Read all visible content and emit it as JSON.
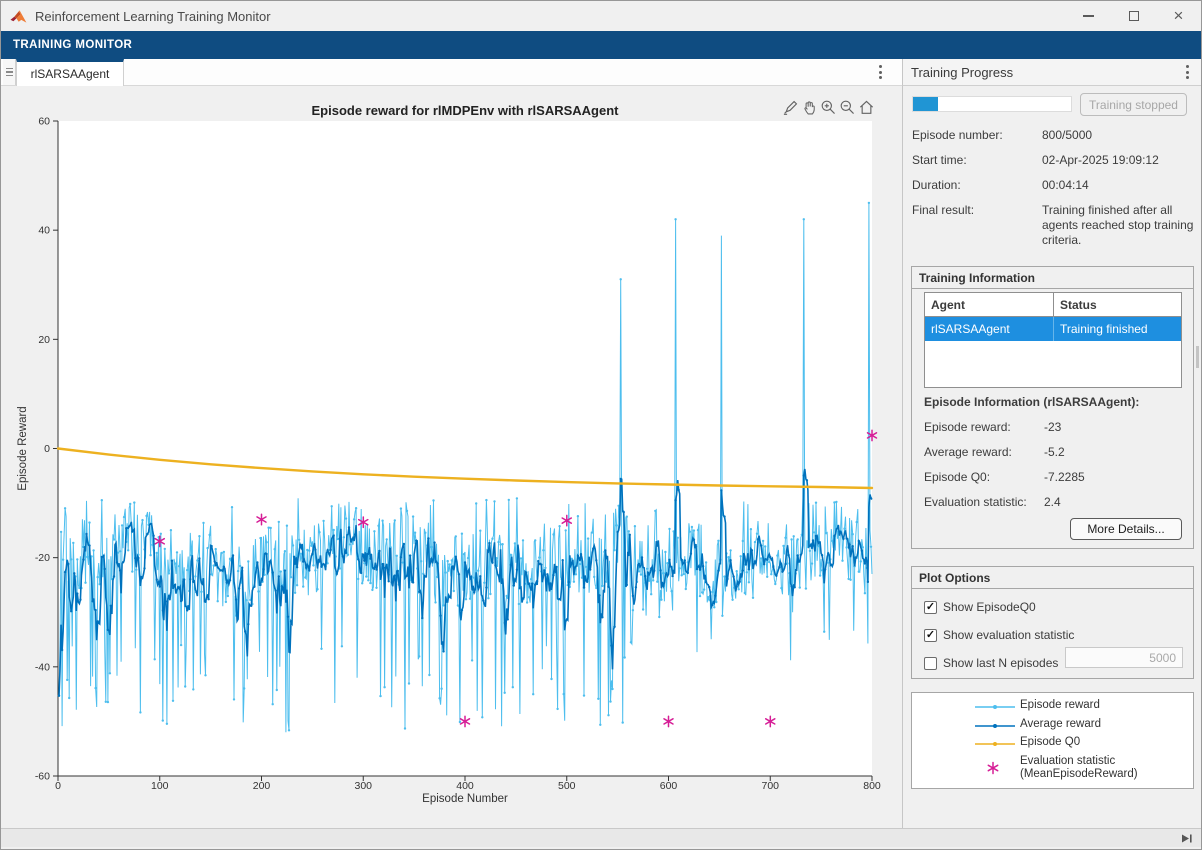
{
  "window": {
    "title": "Reinforcement Learning Training Monitor",
    "controls": [
      "minimize",
      "maximize",
      "close"
    ]
  },
  "toolstrip": {
    "tab_label": "TRAINING MONITOR"
  },
  "document_tabs": {
    "active_tab": "rlSARSAAgent"
  },
  "plot_toolbar": {
    "icons": [
      "edit-plot",
      "pan",
      "zoom-in",
      "zoom-out",
      "home"
    ]
  },
  "chart_data": {
    "type": "line",
    "title": "Episode reward for rlMDPEnv with rlSARSAAgent",
    "xlabel": "Episode Number",
    "ylabel": "Episode Reward",
    "xlim": [
      0,
      800
    ],
    "ylim": [
      -60,
      60
    ],
    "xticks": [
      0,
      100,
      200,
      300,
      400,
      500,
      600,
      700,
      800
    ],
    "yticks": [
      -60,
      -40,
      -20,
      0,
      20,
      40,
      60
    ],
    "grid": false,
    "legend_position": "external-right-panel",
    "series": [
      {
        "name": "Episode reward",
        "color": "#4DBEEE",
        "style": "noisy-line-with-markers",
        "baseline_mean": -20,
        "noise_amplitude": 7,
        "dip_range": [
          -36,
          -52
        ],
        "dip_probability": 0.13,
        "spikes": [
          [
            553,
            31
          ],
          [
            607,
            42
          ],
          [
            652,
            39
          ],
          [
            733,
            42
          ],
          [
            797,
            45
          ]
        ],
        "last_values": [
          [
            798,
            -15
          ],
          [
            799,
            -18
          ],
          [
            800,
            -23
          ]
        ],
        "final_value": -23
      },
      {
        "name": "Average reward",
        "color": "#0072BD",
        "style": "moving-average",
        "window": 5,
        "final_value": -5.2
      },
      {
        "name": "Episode Q0",
        "color": "#EDB120",
        "style": "smooth-line",
        "final_value": -7.2285,
        "points": [
          [
            0,
            0
          ],
          [
            50,
            -1.11
          ],
          [
            100,
            -2.07
          ],
          [
            150,
            -2.89
          ],
          [
            200,
            -3.59
          ],
          [
            250,
            -4.2
          ],
          [
            300,
            -4.72
          ],
          [
            350,
            -5.16
          ],
          [
            400,
            -5.54
          ],
          [
            450,
            -5.87
          ],
          [
            500,
            -6.15
          ],
          [
            550,
            -6.39
          ],
          [
            600,
            -6.6
          ],
          [
            650,
            -6.78
          ],
          [
            700,
            -6.93
          ],
          [
            750,
            -7.06
          ],
          [
            800,
            -7.2285
          ]
        ]
      },
      {
        "name": "Evaluation statistic (MeanEpisodeReward)",
        "color": "#D61E96",
        "style": "asterisk-markers",
        "points": [
          [
            100,
            -17
          ],
          [
            200,
            -13
          ],
          [
            300,
            -13.5
          ],
          [
            400,
            -50
          ],
          [
            500,
            -13.2
          ],
          [
            600,
            -50
          ],
          [
            700,
            -50
          ],
          [
            800,
            2.4
          ]
        ]
      }
    ]
  },
  "progress_panel": {
    "title": "Training Progress",
    "progress_percent": 16,
    "stop_button_label": "Training stopped",
    "fields": [
      {
        "label": "Episode number:",
        "value": "800/5000"
      },
      {
        "label": "Start time:",
        "value": "02-Apr-2025 19:09:12"
      },
      {
        "label": "Duration:",
        "value": "00:04:14"
      },
      {
        "label": "Final result:",
        "value": "Training finished after all agents reached stop training criteria."
      }
    ],
    "training_information": {
      "title": "Training Information",
      "table": {
        "headers": [
          "Agent",
          "Status"
        ],
        "row": {
          "agent": "rlSARSAAgent",
          "status": "Training finished",
          "selected": true
        }
      },
      "episode_info_title": "Episode Information (rlSARSAAgent):",
      "fields": [
        {
          "label": "Episode reward:",
          "value": "-23"
        },
        {
          "label": "Average reward:",
          "value": "-5.2"
        },
        {
          "label": "Episode Q0:",
          "value": "-7.2285"
        },
        {
          "label": "Evaluation statistic:",
          "value": "2.4"
        }
      ],
      "more_details_label": "More Details..."
    },
    "plot_options": {
      "title": "Plot Options",
      "checkboxes": [
        {
          "label": "Show EpisodeQ0",
          "checked": true,
          "mark": "✓"
        },
        {
          "label": "Show evaluation statistic",
          "checked": true,
          "mark": "✓"
        },
        {
          "label": "Show last N episodes",
          "checked": false,
          "mark": ""
        }
      ],
      "n_episodes_value": "5000"
    },
    "legend": {
      "entries": [
        {
          "label": "Episode reward",
          "color": "#4DBEEE",
          "marker": "line-dot"
        },
        {
          "label": "Average reward",
          "color": "#0072BD",
          "marker": "line-dot"
        },
        {
          "label": "Episode Q0",
          "color": "#EDB120",
          "marker": "line-dot"
        },
        {
          "label_line1": "Evaluation statistic",
          "label_line2": "(MeanEpisodeReward)",
          "color": "#D61E96",
          "marker": "asterisk"
        }
      ]
    }
  }
}
